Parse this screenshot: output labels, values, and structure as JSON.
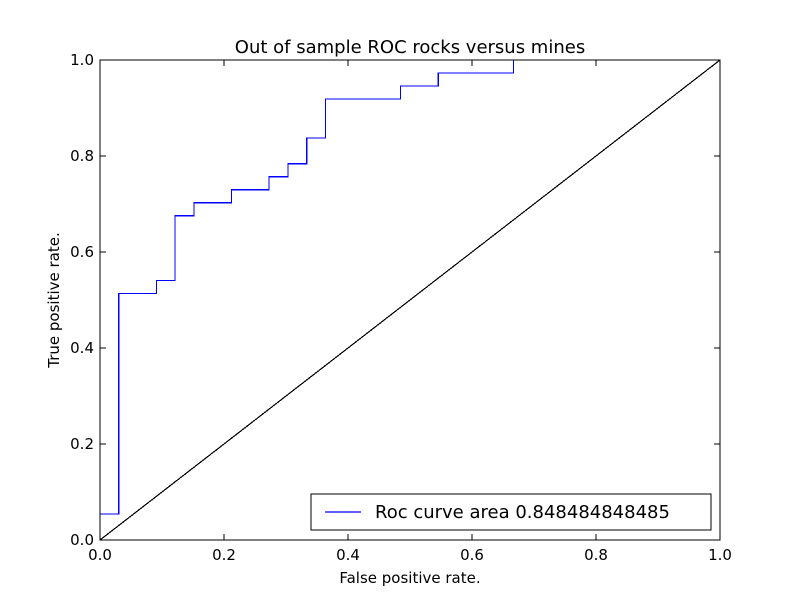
{
  "chart_data": {
    "type": "line",
    "title": "Out of sample ROC rocks versus mines",
    "xlabel": "False positive rate.",
    "ylabel": "True positive rate.",
    "xlim": [
      0.0,
      1.0
    ],
    "ylim": [
      0.0,
      1.0
    ],
    "xticks": [
      "0.0",
      "0.2",
      "0.4",
      "0.6",
      "0.8",
      "1.0"
    ],
    "yticks": [
      "0.0",
      "0.2",
      "0.4",
      "0.6",
      "0.8",
      "1.0"
    ],
    "grid": false,
    "legend_position": "lower-right",
    "series": [
      {
        "name": "Roc curve area 0.848484848485",
        "color": "#0000ff",
        "x": [
          0.0,
          0.0,
          0.0303,
          0.0303,
          0.0909,
          0.0909,
          0.1212,
          0.1212,
          0.1515,
          0.1515,
          0.2121,
          0.2121,
          0.2727,
          0.2727,
          0.303,
          0.303,
          0.3333,
          0.3333,
          0.3636,
          0.3636,
          0.4848,
          0.4848,
          0.5455,
          0.5455,
          0.6667,
          0.6667,
          1.0
        ],
        "y": [
          0.0,
          0.054,
          0.054,
          0.5135,
          0.5135,
          0.5405,
          0.5405,
          0.6757,
          0.6757,
          0.7027,
          0.7027,
          0.7297,
          0.7297,
          0.7568,
          0.7568,
          0.7838,
          0.7838,
          0.8378,
          0.8378,
          0.9189,
          0.9189,
          0.9459,
          0.9459,
          0.973,
          0.973,
          1.0,
          1.0
        ]
      },
      {
        "name": "",
        "color": "#000000",
        "x": [
          0.0,
          1.0
        ],
        "y": [
          0.0,
          1.0
        ]
      }
    ]
  }
}
